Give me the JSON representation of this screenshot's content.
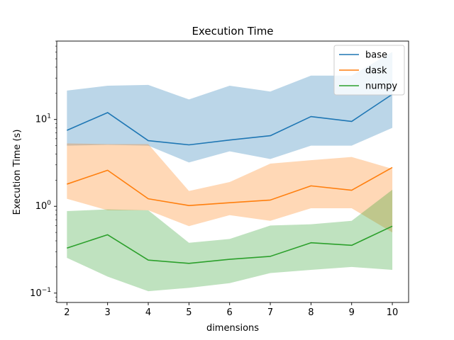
{
  "chart_data": {
    "type": "line",
    "title": "Execution Time",
    "xlabel": "dimensions",
    "ylabel": "Execution Time (s)",
    "yscale": "log",
    "x": [
      2,
      3,
      4,
      5,
      6,
      7,
      8,
      9,
      10
    ],
    "xlim": [
      1.75,
      10.4
    ],
    "ylim": [
      0.078,
      80
    ],
    "xticks": [
      "2",
      "3",
      "4",
      "5",
      "6",
      "7",
      "8",
      "9",
      "10"
    ],
    "yticks": [
      {
        "value": 0.1,
        "base": "10",
        "exp": "−1"
      },
      {
        "value": 1,
        "base": "10",
        "exp": "0"
      },
      {
        "value": 10,
        "base": "10",
        "exp": "1"
      }
    ],
    "grid": false,
    "legend_position": "top-right",
    "series": [
      {
        "name": "base",
        "color": "#1f77b4",
        "band_color": "#1f77b4",
        "values": [
          7.5,
          12.0,
          5.7,
          5.1,
          5.8,
          6.5,
          10.8,
          9.5,
          19.5
        ],
        "lower": [
          5.0,
          5.1,
          5.0,
          3.2,
          4.3,
          3.5,
          5.0,
          5.0,
          8.0
        ],
        "upper": [
          21.5,
          24.5,
          25.0,
          17.0,
          24.5,
          21.0,
          32.0,
          32.0,
          60.0
        ]
      },
      {
        "name": "dask",
        "color": "#ff7f0e",
        "band_color": "#ff7f0e",
        "values": [
          1.8,
          2.6,
          1.22,
          1.02,
          1.1,
          1.18,
          1.72,
          1.53,
          2.8
        ],
        "lower": [
          1.22,
          0.9,
          0.9,
          0.59,
          0.79,
          0.68,
          0.95,
          0.95,
          0.5
        ],
        "upper": [
          5.3,
          5.2,
          5.2,
          1.5,
          1.9,
          3.1,
          3.4,
          3.7,
          2.7
        ]
      },
      {
        "name": "numpy",
        "color": "#2ca02c",
        "band_color": "#2ca02c",
        "values": [
          0.33,
          0.47,
          0.24,
          0.22,
          0.245,
          0.265,
          0.38,
          0.355,
          0.59
        ],
        "lower": [
          0.255,
          0.155,
          0.105,
          0.115,
          0.13,
          0.17,
          0.185,
          0.2,
          0.185
        ],
        "upper": [
          0.88,
          0.92,
          0.9,
          0.38,
          0.42,
          0.6,
          0.62,
          0.68,
          1.55
        ]
      }
    ]
  }
}
